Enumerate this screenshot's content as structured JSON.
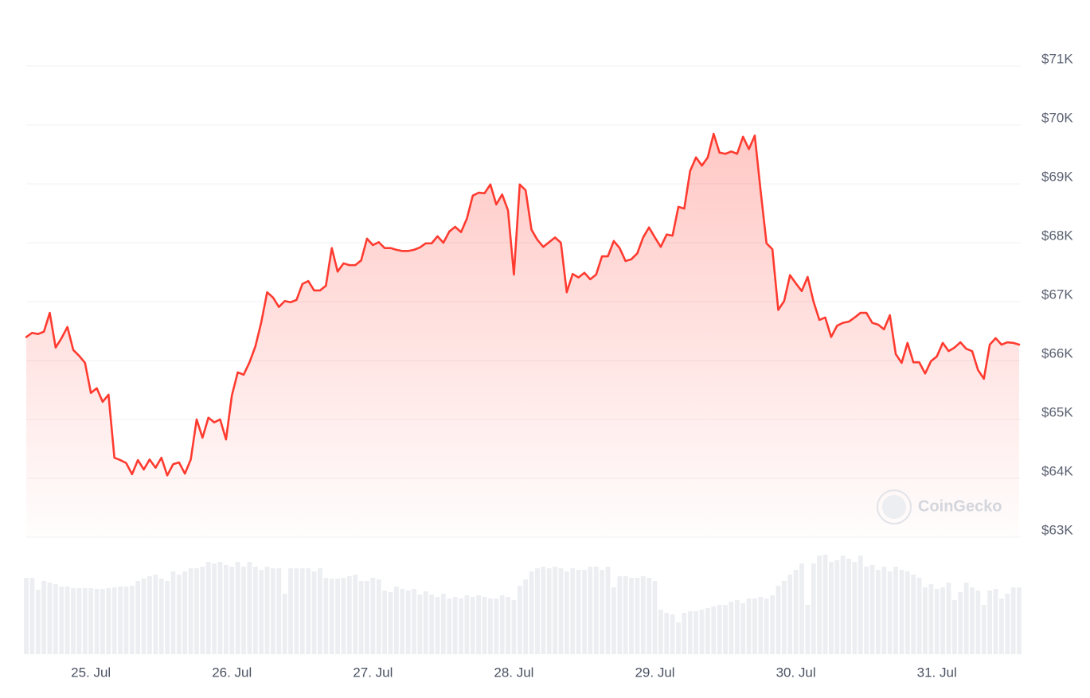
{
  "chart_data": {
    "type": "line",
    "color": "#ff3b30",
    "grid": true,
    "yaxis_side": "right",
    "watermark": "CoinGecko",
    "ylim": [
      63000,
      71000
    ],
    "yticks": [
      {
        "value": 71000,
        "label": "$71K"
      },
      {
        "value": 70000,
        "label": "$70K"
      },
      {
        "value": 69000,
        "label": "$69K"
      },
      {
        "value": 68000,
        "label": "$68K"
      },
      {
        "value": 67000,
        "label": "$67K"
      },
      {
        "value": 66000,
        "label": "$66K"
      },
      {
        "value": 65000,
        "label": "$65K"
      },
      {
        "value": 64000,
        "label": "$64K"
      },
      {
        "value": 63000,
        "label": "$63K"
      }
    ],
    "categories": [
      null,
      null,
      null,
      null,
      null,
      null,
      null,
      null,
      null,
      null,
      null,
      "25. Jul",
      null,
      null,
      null,
      null,
      null,
      null,
      null,
      null,
      null,
      null,
      null,
      null,
      null,
      null,
      null,
      null,
      null,
      null,
      null,
      null,
      null,
      null,
      null,
      "26. Jul",
      null,
      null,
      null,
      null,
      null,
      null,
      null,
      null,
      null,
      null,
      null,
      null,
      null,
      null,
      null,
      null,
      null,
      null,
      null,
      null,
      null,
      null,
      null,
      "27. Jul",
      null,
      null,
      null,
      null,
      null,
      null,
      null,
      null,
      null,
      null,
      null,
      null,
      null,
      null,
      null,
      null,
      null,
      null,
      null,
      null,
      null,
      null,
      null,
      "28. Jul",
      null,
      null,
      null,
      null,
      null,
      null,
      null,
      null,
      null,
      null,
      null,
      null,
      null,
      null,
      null,
      null,
      null,
      null,
      null,
      null,
      null,
      null,
      null,
      "29. Jul",
      null,
      null,
      null,
      null,
      null,
      null,
      null,
      null,
      null,
      null,
      null,
      null,
      null,
      null,
      null,
      null,
      null,
      null,
      null,
      null,
      null,
      null,
      null,
      "30. Jul",
      null,
      null,
      null,
      null,
      null,
      null,
      null,
      null,
      null,
      null,
      null,
      null,
      null,
      null,
      null,
      null,
      null,
      null,
      null,
      null,
      null,
      null,
      null,
      "31. Jul",
      null,
      null,
      null,
      null,
      null,
      null,
      null,
      null,
      null,
      null,
      null,
      null,
      null,
      null
    ],
    "values": [
      66400,
      66470,
      66450,
      66490,
      66810,
      66220,
      66380,
      66570,
      66180,
      66080,
      65960,
      65450,
      65530,
      65300,
      65420,
      64350,
      64310,
      64260,
      64070,
      64310,
      64150,
      64320,
      64180,
      64350,
      64050,
      64240,
      64270,
      64080,
      64320,
      65000,
      64690,
      65030,
      64950,
      65000,
      64660,
      65410,
      65800,
      65760,
      65970,
      66240,
      66650,
      67160,
      67070,
      66910,
      67010,
      66990,
      67030,
      67300,
      67350,
      67190,
      67190,
      67270,
      67910,
      67510,
      67650,
      67620,
      67620,
      67700,
      68070,
      67960,
      68010,
      67910,
      67910,
      67880,
      67860,
      67860,
      67880,
      67920,
      67990,
      67990,
      68110,
      68000,
      68190,
      68270,
      68180,
      68410,
      68800,
      68850,
      68840,
      68990,
      68650,
      68820,
      68550,
      67460,
      68990,
      68890,
      68220,
      68050,
      67930,
      68010,
      68090,
      68000,
      67160,
      67470,
      67410,
      67490,
      67380,
      67460,
      67770,
      67770,
      68030,
      67910,
      67690,
      67720,
      67820,
      68090,
      68260,
      68090,
      67930,
      68140,
      68120,
      68610,
      68580,
      69220,
      69450,
      69310,
      69450,
      69850,
      69530,
      69510,
      69550,
      69510,
      69800,
      69590,
      69820,
      68880,
      67990,
      67890,
      66860,
      67010,
      67450,
      67310,
      67180,
      67420,
      67000,
      66690,
      66730,
      66400,
      66590,
      66640,
      66660,
      66730,
      66810,
      66810,
      66640,
      66610,
      66530,
      66770,
      66110,
      65960,
      66300,
      65970,
      65970,
      65780,
      65990,
      66070,
      66300,
      66160,
      66220,
      66310,
      66200,
      66160,
      65840,
      65690,
      66270,
      66380,
      66270,
      66310,
      66300,
      66270
    ],
    "volume": {
      "color": "#eceef2",
      "ylim": [
        0,
        132
      ],
      "values": [
        96,
        96,
        81,
        92,
        90,
        88,
        85,
        85,
        83,
        83,
        83,
        83,
        82,
        82,
        83,
        84,
        85,
        85,
        86,
        92,
        95,
        98,
        100,
        95,
        92,
        104,
        100,
        104,
        108,
        108,
        110,
        116,
        114,
        116,
        112,
        110,
        116,
        110,
        116,
        110,
        106,
        110,
        108,
        108,
        76,
        108,
        108,
        108,
        108,
        104,
        108,
        96,
        95,
        95,
        96,
        98,
        100,
        92,
        92,
        96,
        94,
        80,
        78,
        85,
        82,
        80,
        82,
        75,
        79,
        75,
        72,
        76,
        70,
        72,
        70,
        74,
        72,
        74,
        72,
        70,
        70,
        74,
        72,
        68,
        86,
        94,
        104,
        108,
        110,
        108,
        110,
        108,
        104,
        108,
        106,
        106,
        110,
        110,
        106,
        110,
        84,
        98,
        98,
        96,
        96,
        98,
        96,
        92,
        56,
        52,
        50,
        40,
        52,
        54,
        54,
        56,
        58,
        60,
        62,
        62,
        66,
        68,
        64,
        70,
        70,
        72,
        70,
        74,
        86,
        92,
        100,
        106,
        114,
        62,
        114,
        124,
        125,
        116,
        118,
        124,
        120,
        116,
        124,
        110,
        112,
        106,
        110,
        104,
        110,
        106,
        104,
        100,
        96,
        84,
        88,
        82,
        84,
        90,
        68,
        78,
        90,
        84,
        80,
        62,
        80,
        82,
        70,
        76,
        84,
        84
      ]
    }
  }
}
